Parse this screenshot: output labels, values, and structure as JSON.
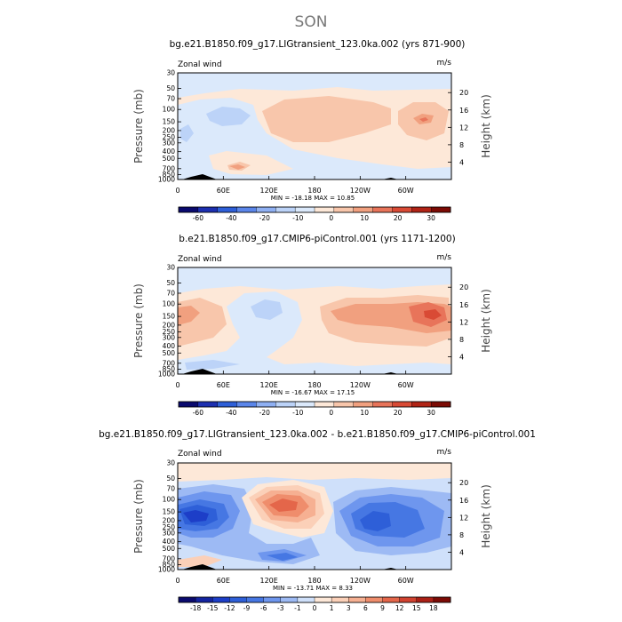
{
  "figure_title": "SON",
  "chart_data": [
    {
      "type": "heatmap",
      "title": "bg.e21.B1850.f09_g17.LIGtransient_123.0ka.002 (yrs 871-900)",
      "left_label": "Zonal wind",
      "right_label": "m/s",
      "ylabel": "Pressure (mb)",
      "y2label": "Height (km)",
      "y_ticks": [
        "30",
        "50",
        "70",
        "100",
        "150",
        "200",
        "250",
        "300",
        "400",
        "500",
        "700",
        "850",
        "1000"
      ],
      "y2_ticks": [
        "20",
        "16",
        "12",
        "8",
        "4"
      ],
      "x_ticks": [
        "0",
        "60E",
        "120E",
        "180",
        "120W",
        "60W"
      ],
      "stats": "MIN = -18.18   MAX =  10.85",
      "colorbar_labels": [
        "-60",
        "-40",
        "-20",
        "-10",
        "0",
        "10",
        "20",
        "30"
      ],
      "colorbar_colors": [
        "#0a0a6e",
        "#1d2fb0",
        "#2e5fd8",
        "#5b86ea",
        "#8fb0f3",
        "#bcd3f8",
        "#dbe9fb",
        "#fde8d8",
        "#f8c6ab",
        "#f1a07f",
        "#e8745a",
        "#d94a35",
        "#b12416",
        "#7c0b05"
      ],
      "min": -18.18,
      "max": 10.85
    },
    {
      "type": "heatmap",
      "title": "b.e21.B1850.f09_g17.CMIP6-piControl.001 (yrs 1171-1200)",
      "left_label": "Zonal wind",
      "right_label": "m/s",
      "ylabel": "Pressure (mb)",
      "y2label": "Height (km)",
      "y_ticks": [
        "30",
        "50",
        "70",
        "100",
        "150",
        "200",
        "250",
        "300",
        "400",
        "500",
        "700",
        "850",
        "1000"
      ],
      "y2_ticks": [
        "20",
        "16",
        "12",
        "8",
        "4"
      ],
      "x_ticks": [
        "0",
        "60E",
        "120E",
        "180",
        "120W",
        "60W"
      ],
      "stats": "MIN = -16.67   MAX =  17.15",
      "colorbar_labels": [
        "-60",
        "-40",
        "-20",
        "-10",
        "0",
        "10",
        "20",
        "30"
      ],
      "colorbar_colors": [
        "#0a0a6e",
        "#1d2fb0",
        "#2e5fd8",
        "#5b86ea",
        "#8fb0f3",
        "#bcd3f8",
        "#dbe9fb",
        "#fde8d8",
        "#f8c6ab",
        "#f1a07f",
        "#e8745a",
        "#d94a35",
        "#b12416",
        "#7c0b05"
      ],
      "min": -16.67,
      "max": 17.15
    },
    {
      "type": "heatmap",
      "title": "bg.e21.B1850.f09_g17.LIGtransient_123.0ka.002 - b.e21.B1850.f09_g17.CMIP6-piControl.001",
      "left_label": "Zonal wind",
      "right_label": "m/s",
      "ylabel": "Pressure (mb)",
      "y2label": "Height (km)",
      "y_ticks": [
        "30",
        "50",
        "70",
        "100",
        "150",
        "200",
        "250",
        "300",
        "400",
        "500",
        "700",
        "850",
        "1000"
      ],
      "y2_ticks": [
        "20",
        "16",
        "12",
        "8",
        "4"
      ],
      "x_ticks": [
        "0",
        "60E",
        "120E",
        "180",
        "120W",
        "60W"
      ],
      "stats": "MIN = -13.71   MAX =    8.33",
      "colorbar_labels": [
        "-18",
        "-15",
        "-12",
        "-9",
        "-6",
        "-3",
        "-1",
        "0",
        "1",
        "3",
        "6",
        "9",
        "12",
        "15",
        "18"
      ],
      "colorbar_colors": [
        "#0a0a6e",
        "#1424a0",
        "#1d3ec8",
        "#2e5fd8",
        "#4677e3",
        "#6e96ee",
        "#9dbaf4",
        "#cfe0fa",
        "#fde8d8",
        "#fbd0b8",
        "#f6b092",
        "#ef8d6c",
        "#e4664a",
        "#d14230",
        "#ab2016",
        "#7c0b05"
      ],
      "min": -13.71,
      "max": 8.33
    }
  ]
}
